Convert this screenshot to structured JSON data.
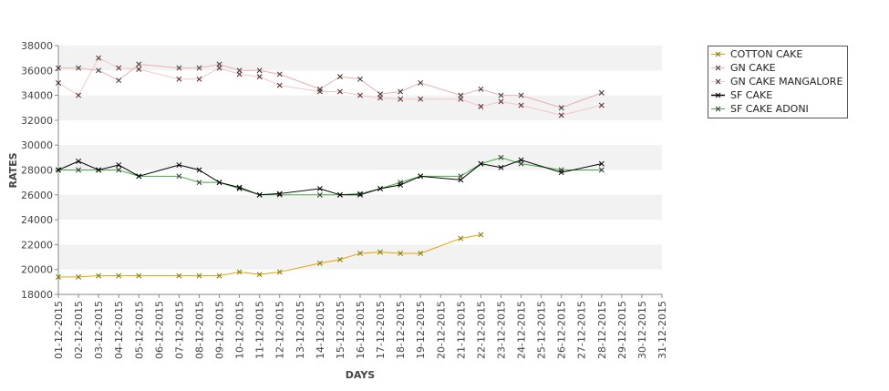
{
  "chart_data": {
    "type": "line",
    "title": "",
    "xlabel": "DAYS",
    "ylabel": "RATES",
    "ylim": [
      18000,
      38000
    ],
    "yticks": [
      18000,
      20000,
      22000,
      24000,
      26000,
      28000,
      30000,
      32000,
      34000,
      36000,
      38000
    ],
    "grid": "alternating horizontal bands",
    "legend": "right",
    "x": [
      "01-12-2015",
      "02-12-2015",
      "03-12-2015",
      "04-12-2015",
      "05-12-2015",
      "06-12-2015",
      "07-12-2015",
      "08-12-2015",
      "09-12-2015",
      "10-12-2015",
      "11-12-2015",
      "12-12-2015",
      "13-12-2015",
      "14-12-2015",
      "15-12-2015",
      "16-12-2015",
      "17-12-2015",
      "18-12-2015",
      "19-12-2015",
      "20-12-2015",
      "21-12-2015",
      "22-12-2015",
      "23-12-2015",
      "24-12-2015",
      "25-12-2015",
      "26-12-2015",
      "27-12-2015",
      "28-12-2015",
      "29-12-2015",
      "30-12-2015",
      "31-12-2015"
    ],
    "series": [
      {
        "name": "COTTON CAKE",
        "color": "#e8a000",
        "mark_color": "#777700",
        "line_width": 1,
        "values": [
          19400,
          19400,
          19500,
          19500,
          19500,
          null,
          19500,
          19500,
          19500,
          19800,
          19600,
          19800,
          null,
          20500,
          20800,
          21300,
          21400,
          21300,
          21300,
          null,
          22500,
          22800,
          null,
          null,
          null,
          null,
          null,
          null,
          null,
          null,
          null
        ]
      },
      {
        "name": "GN CAKE",
        "color": "#e8b0b0",
        "mark_color": "#333333",
        "line_width": 1,
        "values": [
          36200,
          36200,
          36000,
          35200,
          36500,
          null,
          36200,
          36200,
          36500,
          36000,
          36000,
          35700,
          null,
          34500,
          35500,
          35300,
          34100,
          34300,
          35000,
          null,
          34000,
          34500,
          34000,
          34000,
          null,
          33000,
          null,
          34200,
          null,
          null,
          null
        ]
      },
      {
        "name": "GN CAKE MANGALORE",
        "color": "#f0c8c8",
        "mark_color": "#552222",
        "line_width": 1,
        "values": [
          35000,
          34000,
          37000,
          36200,
          36100,
          null,
          35300,
          35300,
          36200,
          35700,
          35500,
          34800,
          null,
          34300,
          34300,
          34000,
          33800,
          33700,
          33700,
          null,
          33700,
          33100,
          33500,
          33200,
          null,
          32400,
          null,
          33200,
          null,
          null,
          null
        ]
      },
      {
        "name": "SF CAKE",
        "color": "#000000",
        "mark_color": "#000000",
        "line_width": 1,
        "values": [
          28000,
          28700,
          28000,
          28400,
          27500,
          null,
          28400,
          28000,
          27000,
          26600,
          26000,
          26100,
          null,
          26500,
          26000,
          26000,
          26500,
          26800,
          27500,
          null,
          27200,
          28500,
          28200,
          28800,
          null,
          27800,
          null,
          28500,
          null,
          null,
          null
        ]
      },
      {
        "name": "SF CAKE ADONI",
        "color": "#44aa44",
        "mark_color": "#333333",
        "line_width": 1,
        "values": [
          28000,
          28000,
          28000,
          28000,
          27500,
          null,
          27500,
          27000,
          27000,
          26500,
          26000,
          26000,
          null,
          26000,
          26000,
          26100,
          26500,
          27000,
          27500,
          null,
          27500,
          28500,
          29000,
          28500,
          null,
          28000,
          null,
          28000,
          null,
          null,
          null
        ]
      }
    ]
  }
}
